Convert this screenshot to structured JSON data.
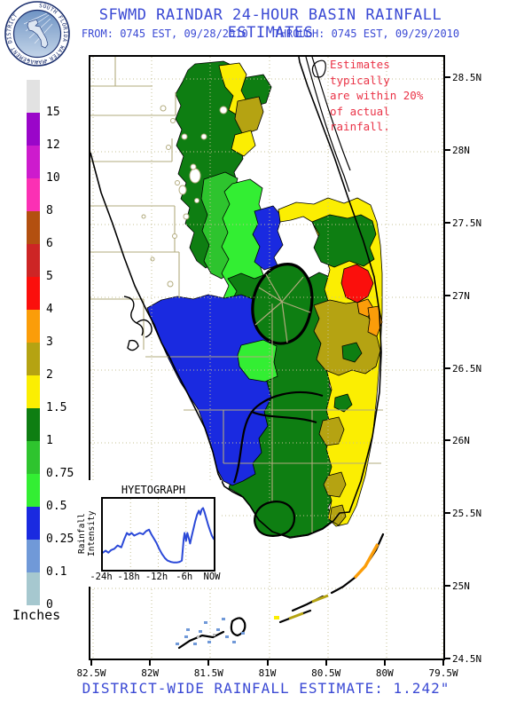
{
  "header": {
    "logo": {
      "ring_text": "SOUTH FLORIDA WATER MANAGEMENT DISTRICT"
    },
    "title": "SFWMD RAINDAR 24-HOUR BASIN RAINFALL ESTIMATES",
    "from_label": "FROM: 0745 EST, 09/28/2010",
    "through_label": "THROUGH: 0745 EST, 09/29/2010"
  },
  "annotation": {
    "lines": [
      "Estimates typically",
      "are within 20%",
      "of actual rainfall."
    ],
    "color": "#ea3347"
  },
  "legend": {
    "title": "Inches",
    "block_colors": [
      "#e2e2e2",
      "#9a06c9",
      "#cd1bcd",
      "#fb30b4",
      "#b35010",
      "#cd2525",
      "#fb0f0c",
      "#fb9d09",
      "#b5a312",
      "#fbee02",
      "#0e7e12",
      "#2ec42e",
      "#33ee33",
      "#1a2ae0",
      "#7099d8",
      "#a6c8cf"
    ],
    "boundary_labels": [
      "15",
      "12",
      "10",
      "8",
      "6",
      "5",
      "4",
      "3",
      "2",
      "1.5",
      "1",
      "0.75",
      "0.5",
      "0.25",
      "0.1",
      "0"
    ]
  },
  "map": {
    "lat_labels": [
      "28.5N",
      "28N",
      "27.5N",
      "27N",
      "26.5N",
      "26N",
      "25.5N",
      "25N",
      "24.5N"
    ],
    "lon_labels": [
      "82.5W",
      "82W",
      "81.5W",
      "81W",
      "80.5W",
      "80W",
      "79.5W"
    ]
  },
  "inset": {
    "title": "HYETOGRAPH",
    "ylabel": "Rainfall Intensity",
    "x_labels": [
      "-24h",
      "-18h",
      "-12h",
      "-6h",
      "NOW"
    ]
  },
  "footer": {
    "text": "DISTRICT-WIDE RAINFALL ESTIMATE: 1.242\""
  },
  "colors": {
    "title_blue": "#3a49d4",
    "annotation_red": "#ea3347",
    "hyetograph_line": "#2b49d8",
    "county_tan": "#b2ab7e",
    "graticule_tan": "#c6c096"
  },
  "chart_data": {
    "type": "line",
    "title": "HYETOGRAPH",
    "ylabel": "Rainfall Intensity",
    "xlabel": "",
    "x_tick_labels": [
      "-24h",
      "-18h",
      "-12h",
      "-6h",
      "NOW"
    ],
    "x_range_hours": [
      -24,
      0
    ],
    "ylim": [
      0,
      1
    ],
    "grid": "vertical-dotted",
    "legend_position": "none",
    "series": [
      {
        "name": "rainfall-intensity",
        "color": "#2b49d8",
        "points": [
          [
            -24,
            0.22
          ],
          [
            -23.4,
            0.25
          ],
          [
            -22.8,
            0.22
          ],
          [
            -22.2,
            0.26
          ],
          [
            -21.5,
            0.28
          ],
          [
            -20.8,
            0.33
          ],
          [
            -20,
            0.3
          ],
          [
            -19.4,
            0.42
          ],
          [
            -18.8,
            0.52
          ],
          [
            -18.3,
            0.49
          ],
          [
            -17.8,
            0.52
          ],
          [
            -17.2,
            0.48
          ],
          [
            -16.6,
            0.5
          ],
          [
            -16,
            0.52
          ],
          [
            -15.3,
            0.5
          ],
          [
            -14.6,
            0.55
          ],
          [
            -14,
            0.57
          ],
          [
            -13.5,
            0.5
          ],
          [
            -13,
            0.44
          ],
          [
            -12.4,
            0.37
          ],
          [
            -11.8,
            0.28
          ],
          [
            -11.2,
            0.2
          ],
          [
            -10.6,
            0.14
          ],
          [
            -10,
            0.1
          ],
          [
            -9.3,
            0.08
          ],
          [
            -8.6,
            0.07
          ],
          [
            -8,
            0.07
          ],
          [
            -7.4,
            0.08
          ],
          [
            -6.9,
            0.1
          ],
          [
            -6.5,
            0.42
          ],
          [
            -6.3,
            0.52
          ],
          [
            -6,
            0.4
          ],
          [
            -5.7,
            0.52
          ],
          [
            -5.4,
            0.44
          ],
          [
            -5.1,
            0.36
          ],
          [
            -4.8,
            0.46
          ],
          [
            -4.4,
            0.58
          ],
          [
            -4,
            0.7
          ],
          [
            -3.6,
            0.8
          ],
          [
            -3.2,
            0.86
          ],
          [
            -2.9,
            0.8
          ],
          [
            -2.6,
            0.88
          ],
          [
            -2.3,
            0.9
          ],
          [
            -2,
            0.84
          ],
          [
            -1.6,
            0.74
          ],
          [
            -1.2,
            0.64
          ],
          [
            -0.8,
            0.56
          ],
          [
            -0.4,
            0.48
          ],
          [
            0,
            0.43
          ]
        ]
      }
    ]
  },
  "rainfall_scale": {
    "units": "Inches",
    "thresholds": [
      0,
      0.1,
      0.25,
      0.5,
      0.75,
      1,
      1.5,
      2,
      3,
      4,
      5,
      6,
      8,
      10,
      12,
      15
    ]
  }
}
